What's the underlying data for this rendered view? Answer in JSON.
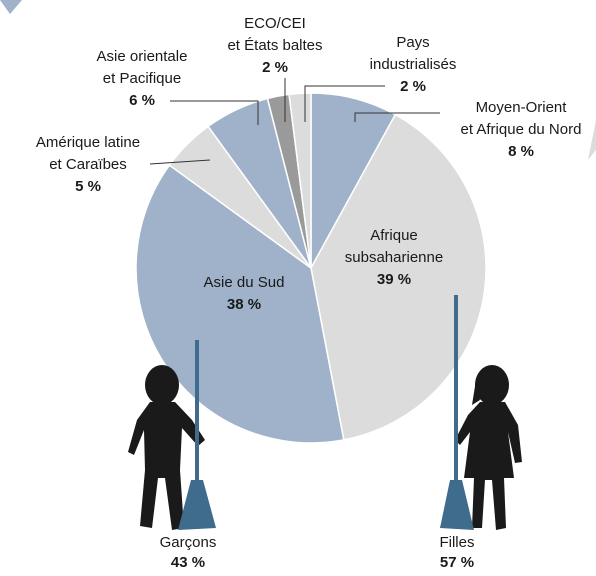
{
  "chart_data": {
    "type": "pie",
    "categories": [
      [
        "Moyen-Orient",
        "et Afrique du Nord"
      ],
      [
        "Afrique",
        "subsaharienne"
      ],
      [
        "Asie du Sud"
      ],
      [
        "Amérique latine",
        "et Caraïbes"
      ],
      [
        "Asie orientale",
        "et Pacifique"
      ],
      [
        "ECO/CEI",
        "et États baltes"
      ],
      [
        "Pays",
        "industrialisés"
      ]
    ],
    "values": [
      8,
      39,
      38,
      5,
      6,
      2,
      2
    ],
    "value_labels": [
      "8 %",
      "39 %",
      "38 %",
      "5 %",
      "6 %",
      "2 %",
      "2 %"
    ],
    "colors": [
      "#9fb2c9",
      "#dcdcdc",
      "#9fb2c9",
      "#dcdcdc",
      "#9fb2c9",
      "#9a9a9a",
      "#dcdcdc"
    ],
    "annotations": [
      {
        "label": "Garçons",
        "value": 43,
        "value_label": "43 %"
      },
      {
        "label": "Filles",
        "value": 57,
        "value_label": "57 %"
      }
    ]
  }
}
